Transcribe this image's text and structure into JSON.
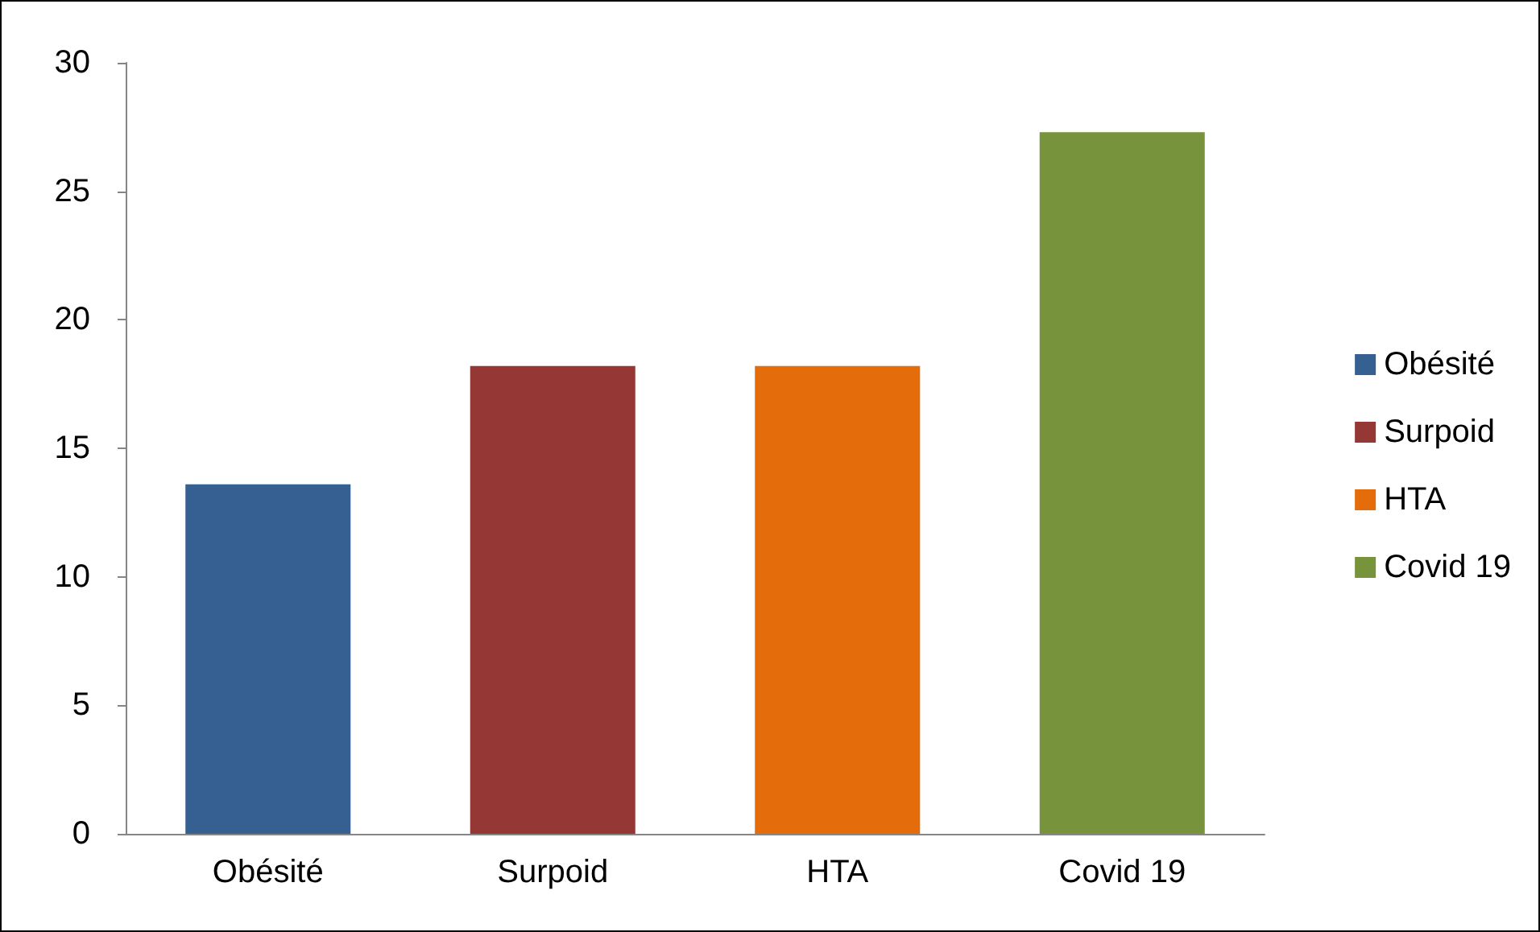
{
  "chart_data": {
    "type": "bar",
    "categories": [
      "Obésité",
      "Surpoid",
      "HTA",
      "Covid 19"
    ],
    "series": [
      {
        "name": "Obésité",
        "color": "#376092",
        "values": [
          13.6,
          null,
          null,
          null
        ]
      },
      {
        "name": "Surpoid",
        "color": "#953735",
        "values": [
          null,
          18.2,
          null,
          null
        ]
      },
      {
        "name": "HTA",
        "color": "#e46c0a",
        "values": [
          null,
          null,
          18.2,
          null
        ]
      },
      {
        "name": "Covid 19",
        "color": "#77933c",
        "values": [
          null,
          null,
          null,
          27.3
        ]
      }
    ],
    "ylim": [
      0,
      30
    ],
    "yticks": [
      0,
      5,
      10,
      15,
      20,
      25,
      30
    ],
    "grid": false,
    "legend": "right"
  }
}
